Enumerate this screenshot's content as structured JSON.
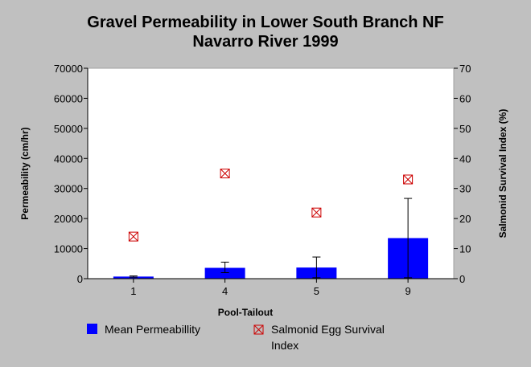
{
  "chart_data": {
    "type": "bar",
    "title": [
      "Gravel Permeability in Lower South Branch NF",
      "Navarro River 1999"
    ],
    "xlabel": "Pool-Tailout",
    "ylabel": "Permeability (cm/hr)",
    "y2label": "Salmonid Survival Index (%)",
    "categories": [
      "1",
      "4",
      "5",
      "9"
    ],
    "ylim": [
      0,
      70000
    ],
    "y2lim": [
      0,
      70
    ],
    "yticks": [
      "0",
      "10000",
      "20000",
      "30000",
      "40000",
      "50000",
      "60000",
      "70000"
    ],
    "y2ticks": [
      "0",
      "10",
      "20",
      "30",
      "40",
      "50",
      "60",
      "70"
    ],
    "series": [
      {
        "name": "Mean Permeabillity",
        "type": "bar",
        "axis": "left",
        "color": "#0000ff",
        "values": [
          700,
          3600,
          3700,
          13500
        ],
        "error_low": [
          500,
          2000,
          300,
          300
        ],
        "error_high": [
          900,
          5500,
          7200,
          26700
        ]
      },
      {
        "name": "Salmonid Egg Survival Index",
        "type": "scatter",
        "axis": "right",
        "marker": "boxed-x",
        "color": "#cc0000",
        "values": [
          14,
          35,
          22,
          33
        ]
      }
    ],
    "legend": {
      "position": "bottom",
      "entries": [
        {
          "label_lines": [
            "Mean Permeabillity"
          ]
        },
        {
          "label_lines": [
            "Salmonid Egg Survival",
            "Index"
          ]
        }
      ]
    },
    "grid": false
  }
}
